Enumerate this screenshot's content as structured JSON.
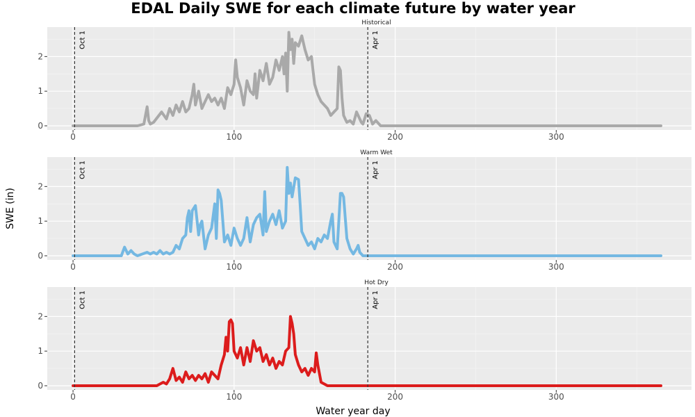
{
  "chart_data": {
    "type": "line",
    "title": "EDAL Daily SWE for each climate future by water year",
    "xlabel": "Water year day",
    "ylabel": "SWE (in)",
    "xlim": [
      -16,
      384
    ],
    "ylim": [
      -0.12,
      2.85
    ],
    "x_ticks": [
      0,
      100,
      200,
      300
    ],
    "y_ticks": [
      0,
      1,
      2
    ],
    "grid": true,
    "reference_lines": [
      {
        "label": "Oct 1",
        "x": 1
      },
      {
        "label": "Apr 1",
        "x": 183
      }
    ],
    "panels": [
      {
        "name": "Historical",
        "color": "#a9a9a9",
        "note": "approximate upper envelope of overlapping water-year traces",
        "x": [
          0,
          40,
          44,
          46,
          47,
          48,
          50,
          55,
          58,
          60,
          62,
          64,
          66,
          68,
          70,
          72,
          74,
          75,
          76,
          78,
          80,
          82,
          84,
          86,
          88,
          90,
          92,
          94,
          96,
          98,
          100,
          101,
          102,
          104,
          106,
          108,
          110,
          112,
          113,
          114,
          116,
          118,
          120,
          122,
          124,
          126,
          128,
          130,
          131,
          132,
          133,
          134,
          135,
          136,
          137,
          138,
          140,
          142,
          144,
          146,
          148,
          150,
          152,
          154,
          156,
          158,
          160,
          162,
          164,
          165,
          166,
          167,
          168,
          169,
          170,
          172,
          174,
          176,
          178,
          179,
          180,
          182,
          184,
          186,
          188,
          190,
          191,
          192,
          194,
          365
        ],
        "y": [
          0,
          0,
          0.05,
          0.55,
          0.15,
          0.05,
          0.1,
          0.4,
          0.2,
          0.5,
          0.3,
          0.6,
          0.4,
          0.7,
          0.4,
          0.5,
          0.9,
          1.2,
          0.6,
          1.0,
          0.5,
          0.7,
          0.9,
          0.7,
          0.8,
          0.6,
          0.8,
          0.5,
          1.1,
          0.9,
          1.2,
          1.9,
          1.4,
          1.1,
          0.6,
          1.3,
          1.0,
          0.9,
          1.5,
          0.8,
          1.6,
          1.3,
          1.8,
          1.2,
          1.4,
          1.9,
          1.6,
          2.0,
          1.5,
          2.1,
          1.0,
          2.7,
          2.2,
          2.5,
          1.8,
          2.4,
          2.3,
          2.6,
          2.2,
          1.9,
          2.0,
          1.2,
          0.9,
          0.7,
          0.6,
          0.5,
          0.3,
          0.4,
          0.5,
          1.7,
          1.6,
          0.8,
          0.3,
          0.2,
          0.1,
          0.15,
          0.05,
          0.4,
          0.2,
          0.1,
          0.05,
          0.35,
          0.3,
          0.05,
          0.15,
          0.05,
          0,
          0,
          0,
          0
        ]
      },
      {
        "name": "Warm Wet",
        "color": "#74b8e2",
        "note": "approximate upper envelope of overlapping water-year traces",
        "x": [
          0,
          30,
          32,
          34,
          36,
          38,
          40,
          46,
          48,
          50,
          52,
          54,
          56,
          58,
          60,
          62,
          64,
          66,
          68,
          70,
          71,
          72,
          73,
          74,
          76,
          78,
          79,
          80,
          82,
          84,
          86,
          88,
          89,
          90,
          91,
          92,
          94,
          96,
          98,
          100,
          102,
          104,
          106,
          108,
          110,
          112,
          114,
          116,
          118,
          119,
          120,
          122,
          124,
          126,
          128,
          130,
          132,
          133,
          134,
          135,
          136,
          138,
          140,
          141,
          142,
          144,
          146,
          148,
          150,
          152,
          154,
          156,
          158,
          160,
          161,
          162,
          164,
          166,
          167,
          168,
          170,
          172,
          174,
          176,
          177,
          178,
          180,
          182,
          365
        ],
        "y": [
          0,
          0,
          0.25,
          0.05,
          0.15,
          0.05,
          0,
          0.1,
          0.05,
          0.1,
          0.05,
          0.15,
          0.05,
          0.1,
          0.05,
          0.1,
          0.3,
          0.2,
          0.5,
          0.6,
          1.1,
          1.3,
          0.7,
          1.3,
          1.45,
          0.6,
          0.9,
          1.0,
          0.2,
          0.6,
          0.8,
          1.5,
          0.5,
          1.9,
          1.8,
          1.6,
          0.4,
          0.6,
          0.3,
          0.8,
          0.5,
          0.3,
          0.5,
          1.1,
          0.4,
          0.9,
          1.1,
          1.2,
          0.6,
          1.85,
          0.7,
          1.0,
          1.2,
          0.9,
          1.3,
          0.8,
          1.0,
          2.55,
          1.8,
          2.1,
          1.7,
          2.25,
          2.2,
          1.5,
          0.7,
          0.5,
          0.3,
          0.4,
          0.2,
          0.5,
          0.4,
          0.6,
          0.5,
          1.0,
          1.2,
          0.4,
          0.2,
          1.8,
          1.8,
          1.7,
          0.5,
          0.2,
          0.05,
          0.2,
          0.3,
          0.1,
          0,
          0,
          0
        ]
      },
      {
        "name": "Hot Dry",
        "color": "#dc1c1c",
        "note": "approximate upper envelope of overlapping water-year traces",
        "x": [
          0,
          52,
          54,
          56,
          58,
          60,
          62,
          64,
          66,
          68,
          70,
          72,
          74,
          76,
          78,
          80,
          82,
          84,
          86,
          88,
          90,
          92,
          94,
          95,
          96,
          97,
          98,
          99,
          100,
          102,
          104,
          106,
          108,
          110,
          112,
          114,
          116,
          118,
          120,
          122,
          124,
          126,
          128,
          130,
          132,
          134,
          135,
          136,
          137,
          138,
          140,
          142,
          144,
          146,
          148,
          150,
          151,
          152,
          154,
          156,
          158,
          365
        ],
        "y": [
          0,
          0,
          0.05,
          0.1,
          0.05,
          0.2,
          0.5,
          0.15,
          0.25,
          0.1,
          0.4,
          0.2,
          0.3,
          0.15,
          0.3,
          0.2,
          0.35,
          0.1,
          0.4,
          0.3,
          0.2,
          0.6,
          0.9,
          1.4,
          1.0,
          1.85,
          1.9,
          1.8,
          1.0,
          0.8,
          1.1,
          0.6,
          1.1,
          0.7,
          1.3,
          1.0,
          1.1,
          0.7,
          0.9,
          0.6,
          0.8,
          0.5,
          0.7,
          0.6,
          1.0,
          1.1,
          2.0,
          1.8,
          1.5,
          0.9,
          0.6,
          0.4,
          0.5,
          0.3,
          0.5,
          0.4,
          0.95,
          0.6,
          0.1,
          0.05,
          0,
          0
        ]
      }
    ]
  }
}
